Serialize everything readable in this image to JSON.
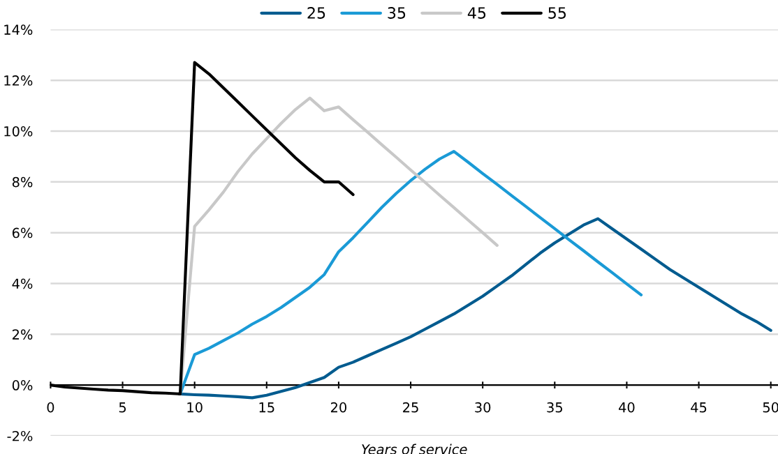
{
  "chart_data": {
    "type": "line",
    "xlabel": "Years of service",
    "legend": "top",
    "grid": "y",
    "marker": "none",
    "line_style": "solid",
    "xlim": [
      0,
      50.5
    ],
    "xticks": [
      0,
      5,
      10,
      15,
      20,
      25,
      30,
      35,
      40,
      45,
      50
    ],
    "ylim": [
      -2,
      14
    ],
    "yticks": [
      {
        "value": -2,
        "label": "-2%"
      },
      {
        "value": 0,
        "label": "0%"
      },
      {
        "value": 2,
        "label": "2%"
      },
      {
        "value": 4,
        "label": "4%"
      },
      {
        "value": 6,
        "label": "6%"
      },
      {
        "value": 8,
        "label": "8%"
      },
      {
        "value": 10,
        "label": "10%"
      },
      {
        "value": 12,
        "label": "12%"
      },
      {
        "value": 14,
        "label": "14%"
      }
    ],
    "series": [
      {
        "name": "25",
        "color": "#005b8f",
        "x": [
          9,
          10,
          11,
          12,
          13,
          14,
          15,
          16,
          17,
          18,
          19,
          20,
          21,
          22,
          23,
          24,
          25,
          26,
          27,
          28,
          29,
          30,
          31,
          32,
          33,
          34,
          35,
          36,
          37,
          38,
          39,
          40,
          41,
          42,
          43,
          44,
          45,
          46,
          47,
          48,
          49,
          50
        ],
        "values": [
          -0.35,
          -0.38,
          -0.4,
          -0.43,
          -0.46,
          -0.5,
          -0.4,
          -0.25,
          -0.1,
          0.1,
          0.3,
          0.7,
          0.9,
          1.15,
          1.4,
          1.65,
          1.9,
          2.2,
          2.5,
          2.8,
          3.15,
          3.5,
          3.9,
          4.3,
          4.75,
          5.2,
          5.6,
          5.95,
          6.3,
          6.55,
          6.15,
          5.75,
          5.35,
          4.95,
          4.55,
          4.2,
          3.85,
          3.5,
          3.15,
          2.8,
          2.5,
          2.15
        ]
      },
      {
        "name": "35",
        "color": "#1a9ad6",
        "x": [
          9,
          10,
          11,
          12,
          13,
          14,
          15,
          16,
          17,
          18,
          19,
          20,
          21,
          22,
          23,
          24,
          25,
          26,
          27,
          28,
          29,
          30,
          31,
          32,
          33,
          34,
          35,
          36,
          37,
          38,
          39,
          40,
          41
        ],
        "values": [
          -0.35,
          1.2,
          1.45,
          1.75,
          2.05,
          2.4,
          2.7,
          3.05,
          3.45,
          3.85,
          4.35,
          5.25,
          5.8,
          6.4,
          7.0,
          7.55,
          8.05,
          8.5,
          8.9,
          9.2,
          8.77,
          8.33,
          7.9,
          7.46,
          7.03,
          6.59,
          6.16,
          5.72,
          5.29,
          4.85,
          4.42,
          3.98,
          3.55
        ]
      },
      {
        "name": "45",
        "color": "#c8c8c8",
        "x": [
          9,
          10,
          11,
          12,
          13,
          14,
          15,
          16,
          17,
          18,
          19,
          20,
          21,
          22,
          23,
          24,
          25,
          26,
          27,
          28,
          29,
          30,
          31
        ],
        "values": [
          -0.35,
          6.25,
          6.9,
          7.6,
          8.4,
          9.1,
          9.7,
          10.3,
          10.85,
          11.3,
          10.8,
          10.95,
          10.45,
          9.96,
          9.46,
          8.97,
          8.47,
          7.98,
          7.48,
          6.99,
          6.49,
          6.0,
          5.5
        ]
      },
      {
        "name": "55",
        "color": "#000000",
        "x": [
          0,
          1,
          2,
          3,
          4,
          5,
          6,
          7,
          8,
          9,
          10,
          11,
          12,
          13,
          14,
          15,
          16,
          17,
          18,
          19,
          20,
          21
        ],
        "values": [
          0,
          -0.08,
          -0.12,
          -0.16,
          -0.2,
          -0.22,
          -0.26,
          -0.3,
          -0.32,
          -0.35,
          12.7,
          12.25,
          11.7,
          11.15,
          10.6,
          10.05,
          9.5,
          8.95,
          8.45,
          8.0,
          8.0,
          7.5
        ]
      }
    ]
  }
}
